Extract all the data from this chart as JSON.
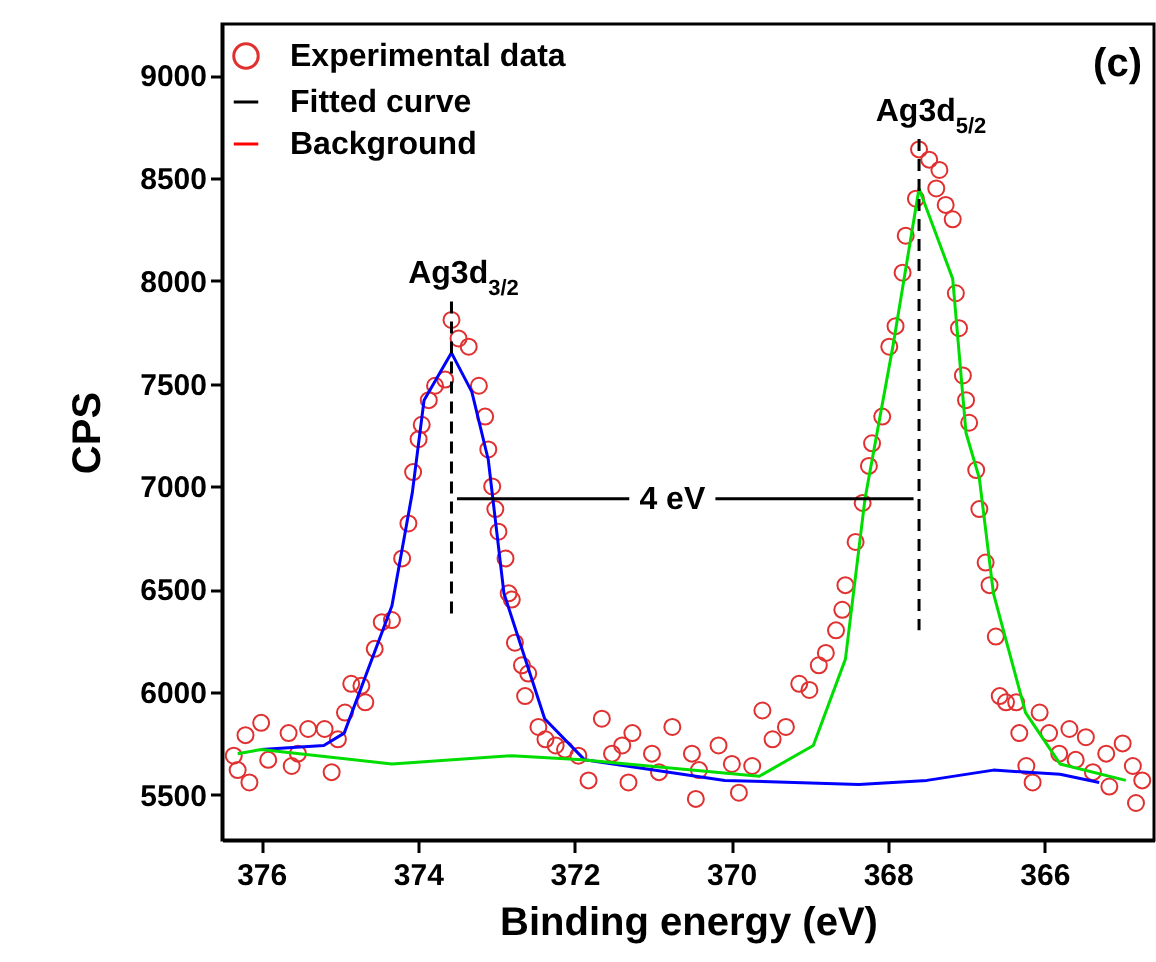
{
  "chart_data": {
    "type": "scatter",
    "xlabel": "Binding energy  (eV)",
    "ylabel": "CPS",
    "xlim": [
      376.5,
      364.6
    ],
    "xticks": [
      376,
      374,
      372,
      370,
      368,
      366
    ],
    "ylim": [
      5280,
      9250
    ],
    "yticks": [
      5500,
      6000,
      6500,
      7000,
      7500,
      8000,
      8500,
      9000
    ],
    "grid": false,
    "legend": "top left",
    "annotations": [
      "(c)",
      "Ag3d$_{3/2}$",
      "Ag3d$_{5/2}$",
      "4 eV"
    ],
    "series": [
      {
        "name": "Experimental data",
        "marker": "circle",
        "color": "#e03030",
        "x": [
          376.35,
          376.3,
          376.2,
          376.15,
          376.0,
          375.91,
          375.65,
          375.61,
          375.53,
          375.4,
          375.19,
          375.1,
          375.02,
          374.93,
          374.85,
          374.72,
          374.67,
          374.55,
          374.46,
          374.33,
          374.2,
          374.12,
          374.06,
          373.99,
          373.95,
          373.86,
          373.78,
          373.65,
          373.57,
          373.48,
          373.35,
          373.22,
          373.14,
          373.1,
          373.05,
          373.01,
          372.97,
          372.88,
          372.84,
          372.8,
          372.76,
          372.67,
          372.63,
          372.59,
          372.46,
          372.37,
          372.24,
          372.12,
          371.95,
          371.82,
          371.65,
          371.52,
          371.39,
          371.31,
          371.26,
          371.01,
          370.92,
          370.75,
          370.5,
          370.45,
          370.41,
          370.16,
          369.99,
          369.9,
          369.73,
          369.6,
          369.47,
          369.3,
          369.13,
          369.0,
          368.88,
          368.79,
          368.66,
          368.58,
          368.54,
          368.41,
          368.32,
          368.24,
          368.2,
          368.07,
          367.98,
          367.9,
          367.81,
          367.77,
          367.64,
          367.6,
          367.47,
          367.38,
          367.34,
          367.26,
          367.17,
          367.13,
          367.09,
          367.04,
          367.0,
          366.96,
          366.87,
          366.83,
          366.75,
          366.7,
          366.62,
          366.57,
          366.49,
          366.36,
          366.32,
          366.23,
          366.15,
          366.06,
          365.94,
          365.81,
          365.68,
          365.6,
          365.47,
          365.38,
          365.21,
          365.17,
          365.0,
          364.87,
          364.83,
          364.75
        ],
        "values": [
          5690,
          5620,
          5790,
          5560,
          5850,
          5670,
          5800,
          5640,
          5700,
          5820,
          5820,
          5610,
          5770,
          5900,
          6040,
          6030,
          5950,
          6210,
          6340,
          6350,
          6650,
          6820,
          7070,
          7230,
          7300,
          7420,
          7490,
          7520,
          7810,
          7720,
          7680,
          7490,
          7340,
          7180,
          7000,
          6890,
          6780,
          6650,
          6480,
          6450,
          6240,
          6130,
          5980,
          6090,
          5830,
          5770,
          5740,
          5720,
          5690,
          5570,
          5870,
          5700,
          5740,
          5560,
          5800,
          5700,
          5610,
          5830,
          5700,
          5480,
          5620,
          5740,
          5650,
          5510,
          5640,
          5910,
          5770,
          5830,
          6040,
          6010,
          6130,
          6190,
          6300,
          6400,
          6520,
          6730,
          6920,
          7100,
          7210,
          7340,
          7680,
          7780,
          8040,
          8220,
          8400,
          8640,
          8590,
          8450,
          8540,
          8370,
          8300,
          7940,
          7770,
          7540,
          7420,
          7310,
          7080,
          6890,
          6630,
          6520,
          6270,
          5980,
          5950,
          5950,
          5800,
          5640,
          5560,
          5900,
          5800,
          5700,
          5820,
          5670,
          5780,
          5610,
          5700,
          5540,
          5750,
          5640,
          5460,
          5570
        ]
      },
      {
        "name": "Fitted curve",
        "type": "line",
        "color": "#000000"
      },
      {
        "name": "Background",
        "type": "line",
        "color": "#ff0000"
      },
      {
        "type": "line",
        "color": "#0000ff",
        "x": [
          376.0,
          375.2,
          374.94,
          374.33,
          374.07,
          373.92,
          373.57,
          373.31,
          373.1,
          372.9,
          372.38,
          371.87,
          370.08,
          368.37,
          367.5,
          366.65,
          365.8,
          365.3
        ],
        "values": [
          5720,
          5740,
          5800,
          6420,
          6970,
          7420,
          7650,
          7460,
          7130,
          6480,
          5870,
          5670,
          5570,
          5550,
          5570,
          5620,
          5600,
          5560
        ]
      },
      {
        "type": "line",
        "color": "#00dd00",
        "x": [
          376.3,
          376.0,
          374.33,
          372.8,
          371.9,
          369.64,
          368.95,
          368.54,
          368.29,
          367.93,
          367.6,
          367.17,
          367.0,
          366.83,
          366.65,
          366.24,
          365.8,
          364.96
        ],
        "values": [
          5700,
          5720,
          5650,
          5690,
          5670,
          5590,
          5740,
          6160,
          6940,
          7690,
          8450,
          8010,
          7260,
          7040,
          6480,
          5900,
          5650,
          5570
        ]
      },
      {
        "type": "line",
        "color": "#000000",
        "line_style": "dashed",
        "x": [
          373.57,
          373.57
        ],
        "values": [
          7900,
          6370
        ]
      },
      {
        "type": "line",
        "color": "#000000",
        "line_style": "dashed",
        "x": [
          367.6,
          367.6
        ],
        "values": [
          8690,
          6300
        ]
      },
      {
        "type": "line",
        "color": "#000000",
        "line_style": "solid",
        "x": [
          373.5,
          371.3,
          371.0,
          370.2,
          367.67
        ],
        "values": [
          6940,
          6940,
          null,
          6940,
          6940
        ]
      }
    ]
  }
}
